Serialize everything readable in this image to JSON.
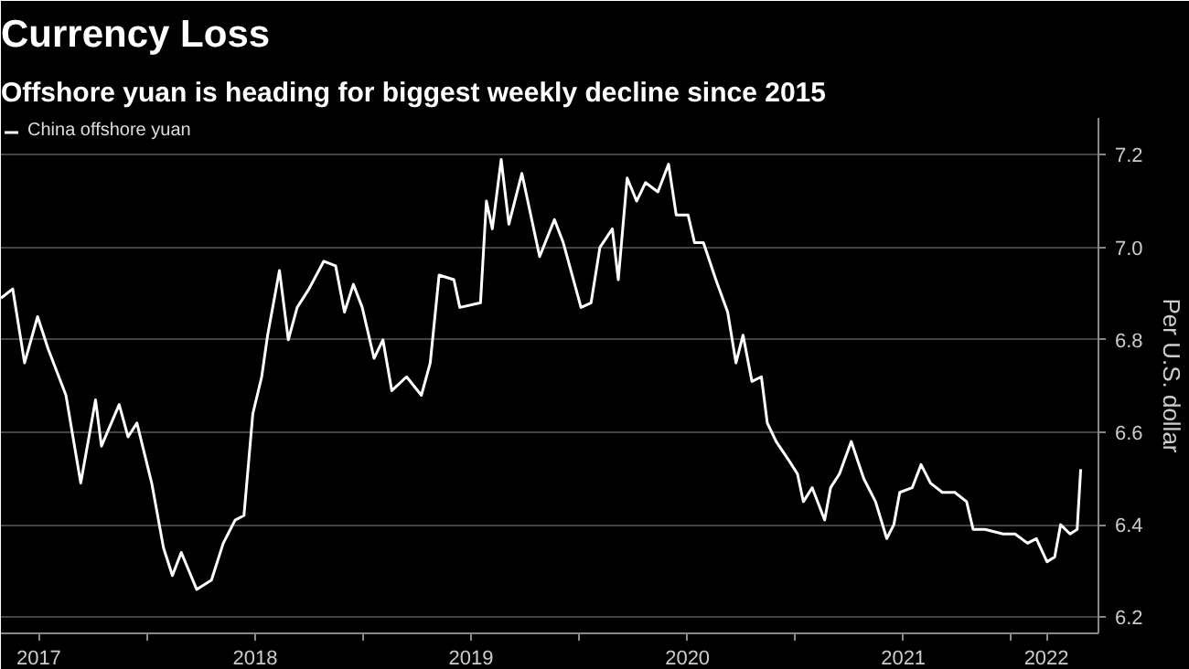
{
  "chart_data": {
    "type": "line",
    "title": "Currency Loss",
    "subtitle": "Offshore yuan is heading for biggest weekly decline since 2015",
    "ylabel": "Per U.S. dollar",
    "x": [
      "2017-04-28",
      "2017-05-18",
      "2017-06-07",
      "2017-06-29",
      "2017-07-17",
      "2017-08-16",
      "2017-09-10",
      "2017-10-05",
      "2017-10-15",
      "2017-11-14",
      "2017-11-29",
      "2017-12-14",
      "2018-01-08",
      "2018-01-28",
      "2018-02-12",
      "2018-02-27",
      "2018-03-25",
      "2018-04-19",
      "2018-05-09",
      "2018-05-29",
      "2018-06-13",
      "2018-06-28",
      "2018-07-13",
      "2018-07-23",
      "2018-08-12",
      "2018-08-27",
      "2018-09-11",
      "2018-10-01",
      "2018-10-26",
      "2018-11-15",
      "2018-11-30",
      "2018-12-15",
      "2018-12-30",
      "2019-01-19",
      "2019-02-03",
      "2019-02-18",
      "2019-03-15",
      "2019-04-09",
      "2019-04-24",
      "2019-05-09",
      "2019-06-03",
      "2019-06-13",
      "2019-07-18",
      "2019-07-28",
      "2019-08-07",
      "2019-08-22",
      "2019-09-04",
      "2019-09-26",
      "2019-10-26",
      "2019-11-20",
      "2019-12-05",
      "2020-01-04",
      "2020-01-21",
      "2020-02-05",
      "2020-02-26",
      "2020-03-07",
      "2020-03-22",
      "2020-04-07",
      "2020-04-22",
      "2020-05-13",
      "2020-05-31",
      "2020-06-13",
      "2020-07-03",
      "2020-07-14",
      "2020-07-29",
      "2020-08-19",
      "2020-09-08",
      "2020-09-22",
      "2020-10-04",
      "2020-10-19",
      "2020-11-04",
      "2020-11-14",
      "2020-11-29",
      "2020-12-20",
      "2021-01-04",
      "2021-01-14",
      "2021-01-29",
      "2021-02-19",
      "2021-03-01",
      "2021-03-16",
      "2021-04-05",
      "2021-04-26",
      "2021-05-16",
      "2021-06-04",
      "2021-06-16",
      "2021-06-26",
      "2021-07-17",
      "2021-08-01",
      "2021-08-17",
      "2021-09-06",
      "2021-09-27",
      "2021-10-17",
      "2021-10-28",
      "2021-11-17",
      "2021-12-18",
      "2022-01-07",
      "2022-01-28",
      "2022-02-12",
      "2022-03-02",
      "2022-03-15",
      "2022-03-25",
      "2022-04-10",
      "2022-04-22",
      "2022-04-28"
    ],
    "series": [
      {
        "name": "China offshore yuan",
        "color": "#ffffff",
        "values": [
          6.89,
          6.91,
          6.75,
          6.85,
          6.78,
          6.68,
          6.49,
          6.67,
          6.57,
          6.66,
          6.59,
          6.62,
          6.49,
          6.35,
          6.29,
          6.34,
          6.26,
          6.28,
          6.36,
          6.41,
          6.42,
          6.64,
          6.72,
          6.81,
          6.95,
          6.8,
          6.87,
          6.91,
          6.97,
          6.96,
          6.86,
          6.92,
          6.87,
          6.76,
          6.8,
          6.69,
          6.72,
          6.68,
          6.75,
          6.94,
          6.93,
          6.87,
          6.88,
          7.1,
          7.04,
          7.19,
          7.05,
          7.16,
          6.98,
          7.06,
          7.01,
          6.87,
          6.88,
          7.0,
          7.04,
          6.93,
          7.15,
          7.1,
          7.14,
          7.12,
          7.18,
          7.07,
          7.07,
          7.01,
          7.01,
          6.93,
          6.86,
          6.75,
          6.81,
          6.71,
          6.72,
          6.62,
          6.58,
          6.54,
          6.51,
          6.45,
          6.48,
          6.41,
          6.48,
          6.51,
          6.58,
          6.5,
          6.45,
          6.37,
          6.4,
          6.47,
          6.48,
          6.53,
          6.49,
          6.47,
          6.47,
          6.45,
          6.39,
          6.39,
          6.38,
          6.38,
          6.36,
          6.37,
          6.32,
          6.33,
          6.4,
          6.38,
          6.39,
          6.52
        ]
      }
    ],
    "xlim": [
      "2017-04-28",
      "2022-05-28"
    ],
    "xticks": [
      {
        "value": "2017-07-01",
        "label": "2017"
      },
      {
        "value": "2018-01-01",
        "label": null
      },
      {
        "value": "2018-07-02",
        "label": "2018"
      },
      {
        "value": "2019-01-01",
        "label": null
      },
      {
        "value": "2019-07-02",
        "label": "2019"
      },
      {
        "value": "2020-01-01",
        "label": null
      },
      {
        "value": "2020-07-02",
        "label": "2020"
      },
      {
        "value": "2021-01-01",
        "label": null
      },
      {
        "value": "2021-07-02",
        "label": "2021"
      },
      {
        "value": "2022-01-01",
        "label": null
      },
      {
        "value": "2022-03-01",
        "label": "2022"
      }
    ],
    "ylim": [
      6.165,
      7.28
    ],
    "yticks": [
      6.2,
      6.4,
      6.6,
      6.8,
      {
        "value": 7.0,
        "label": "7.0"
      },
      7.2
    ],
    "grid": "y",
    "legend": "top left",
    "line_style": "solid",
    "marker": "none"
  }
}
